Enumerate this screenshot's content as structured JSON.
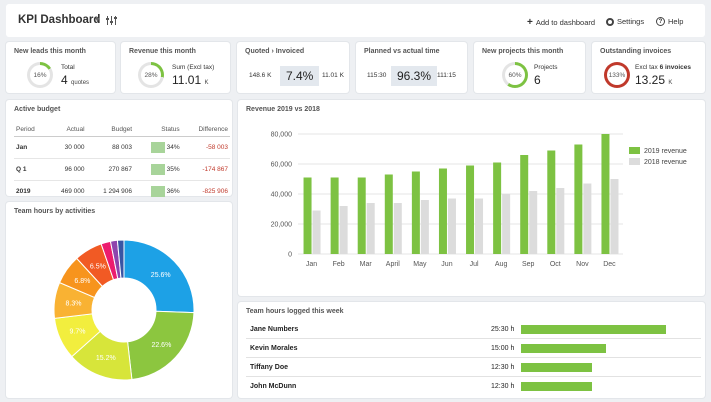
{
  "header": {
    "title": "KPI Dashboard",
    "add_label": "Add to dashboard",
    "settings_label": "Settings",
    "help_label": "Help"
  },
  "colors": {
    "green": "#7dc242",
    "gray": "#dcdcdc",
    "blue": "#2aa7e8",
    "red": "#c0392b"
  },
  "kpis": {
    "leads": {
      "title": "New leads this month",
      "pct_text": "16%",
      "pct": 16,
      "label": "Total",
      "value": "4",
      "unit": "quotes"
    },
    "revenue": {
      "title": "Revenue this month",
      "pct_text": "28%",
      "pct": 28,
      "label": "Sum (Excl tax)",
      "value": "11.01",
      "unit": "K"
    },
    "quoted": {
      "title": "Quoted › Invoiced",
      "left": "148.6 K",
      "mid": "7.4%",
      "right": "11.01 K"
    },
    "planned": {
      "title": "Planned vs actual time",
      "left": "115:30",
      "mid": "96.3%",
      "right": "111:15"
    },
    "projects": {
      "title": "New projects this month",
      "pct_text": "60%",
      "pct": 60,
      "label": "Projects",
      "value": "6"
    },
    "invoices": {
      "title": "Outstanding invoices",
      "pct_text": "133%",
      "pct": 133,
      "label": "Excl tax",
      "label_bold": "6 invoices",
      "value": "13.25",
      "unit": "K"
    }
  },
  "budget": {
    "title": "Active budget",
    "columns": [
      "Period",
      "Actual",
      "Budget",
      "Status",
      "Difference"
    ],
    "rows": [
      {
        "period": "Jan",
        "actual": "30 000",
        "budget": "88 003",
        "status": "34%",
        "diff": "-58 003"
      },
      {
        "period": "Q 1",
        "actual": "96 000",
        "budget": "270 867",
        "status": "35%",
        "diff": "-174 867"
      },
      {
        "period": "2019",
        "actual": "469 000",
        "budget": "1 294 906",
        "status": "36%",
        "diff": "-825 906"
      }
    ]
  },
  "activities": {
    "title": "Team hours by activities"
  },
  "revenue_chart": {
    "title": "Revenue 2019 vs 2018"
  },
  "hours": {
    "title": "Team hours logged this week",
    "rows": [
      {
        "name": "Jane Numbers",
        "value": "25:30 h",
        "hours": 25.5
      },
      {
        "name": "Kevin Morales",
        "value": "15:00 h",
        "hours": 15
      },
      {
        "name": "Tiffany Doe",
        "value": "12:30 h",
        "hours": 12.5
      },
      {
        "name": "John McDunn",
        "value": "12:30 h",
        "hours": 12.5
      }
    ]
  },
  "chart_data": [
    {
      "type": "bar",
      "title": "Revenue 2019 vs 2018",
      "categories": [
        "Jan",
        "Feb",
        "Mar",
        "April",
        "May",
        "Jun",
        "Jul",
        "Aug",
        "Sep",
        "Oct",
        "Nov",
        "Dec"
      ],
      "series": [
        {
          "name": "2019 revenue",
          "color": "#7dc242",
          "values": [
            51000,
            51000,
            51000,
            53000,
            55000,
            57000,
            59000,
            61000,
            66000,
            69000,
            73000,
            80000
          ]
        },
        {
          "name": "2018 revenue",
          "color": "#dcdcdc",
          "values": [
            29000,
            32000,
            34000,
            34000,
            36000,
            37000,
            37000,
            40000,
            42000,
            44000,
            47000,
            50000
          ]
        }
      ],
      "yticks": [
        "0",
        "20,000",
        "40,000",
        "60,000",
        "80,000"
      ],
      "ylim": [
        0,
        80000
      ],
      "grid": true,
      "legend": "top-right"
    },
    {
      "type": "pie",
      "title": "Team hours by activities",
      "slices": [
        {
          "label": "25.6%",
          "value": 25.6,
          "color": "#1da1e6"
        },
        {
          "label": "22.6%",
          "value": 22.6,
          "color": "#8cc63f"
        },
        {
          "label": "15.2%",
          "value": 15.2,
          "color": "#d7e53a"
        },
        {
          "label": "9.7%",
          "value": 9.7,
          "color": "#f2ee3e"
        },
        {
          "label": "8.3%",
          "value": 8.3,
          "color": "#f9b233"
        },
        {
          "label": "6.8%",
          "value": 6.8,
          "color": "#f7941d"
        },
        {
          "label": "6.5%",
          "value": 6.5,
          "color": "#f15a24"
        },
        {
          "label": "",
          "value": 2.2,
          "color": "#ec1c6e"
        },
        {
          "label": "",
          "value": 1.6,
          "color": "#8e44ad"
        },
        {
          "label": "",
          "value": 1.5,
          "color": "#3955a4"
        }
      ]
    }
  ]
}
